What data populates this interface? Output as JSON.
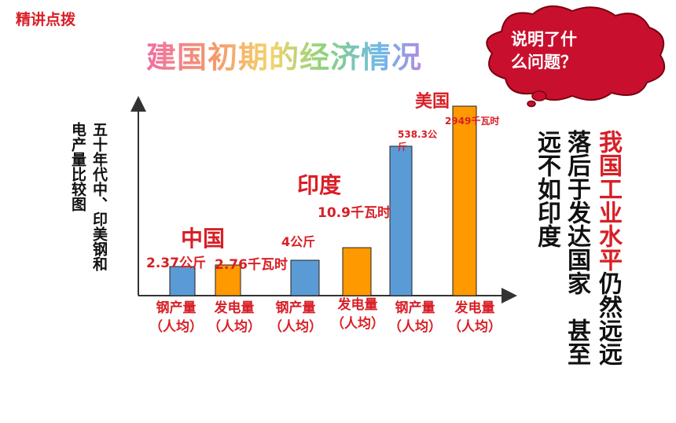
{
  "tag": "精讲点拨",
  "title": "建国初期的经济情况",
  "bubble": {
    "line1": "说明了什",
    "line2": "么问题？"
  },
  "side_label": "五十年代中、印美钢和电产量比较图",
  "countries": {
    "china": "中国",
    "india": "印度",
    "usa": "美国"
  },
  "x_labels": [
    {
      "l1": "钢产量",
      "l2": "（人均）"
    },
    {
      "l1": "发电量",
      "l2": "（人均）"
    },
    {
      "l1": "钢产量",
      "l2": "（人均）"
    },
    {
      "l1": "发电量",
      "l2": "（人均）"
    },
    {
      "l1": "钢产量",
      "l2": "（人均）"
    },
    {
      "l1": "发电量",
      "l2": "（人均）"
    }
  ],
  "value_labels": [
    "2.37公斤",
    "2.76千瓦时",
    "4公斤",
    "10.9千瓦时",
    "538.3公斤",
    "2949千瓦时"
  ],
  "conclusion": {
    "col1_black": "远不如印度",
    "col2_black_a": "落后于发达国家",
    "col2_black_b": "甚至",
    "col3_red": "我国工业水平",
    "col3_black": "仍然远远"
  },
  "chart_data": {
    "type": "bar",
    "categories": [
      "钢产量（人均）",
      "发电量（人均）",
      "钢产量（人均）",
      "发电量（人均）",
      "钢产量（人均）",
      "发电量（人均）"
    ],
    "groups": [
      "中国",
      "中国",
      "印度",
      "印度",
      "美国",
      "美国"
    ],
    "values": [
      2.37,
      2.76,
      4,
      10.9,
      538.3,
      2949
    ],
    "value_labels": [
      "2.37公斤",
      "2.76千瓦时",
      "4公斤",
      "10.9千瓦时",
      "538.3公斤",
      "2949千瓦时"
    ],
    "colors": [
      "#5b9bd5",
      "#ff9900",
      "#5b9bd5",
      "#ff9900",
      "#5b9bd5",
      "#ff9900"
    ],
    "title": "五十年代中、印美钢和电产量比较图",
    "note": "schematic (not to scale)"
  },
  "colors": {
    "accent_red": "#d81f26",
    "bubble_red": "#c8102e",
    "bar_blue": "#5b9bd5",
    "bar_orange": "#ff9900"
  }
}
